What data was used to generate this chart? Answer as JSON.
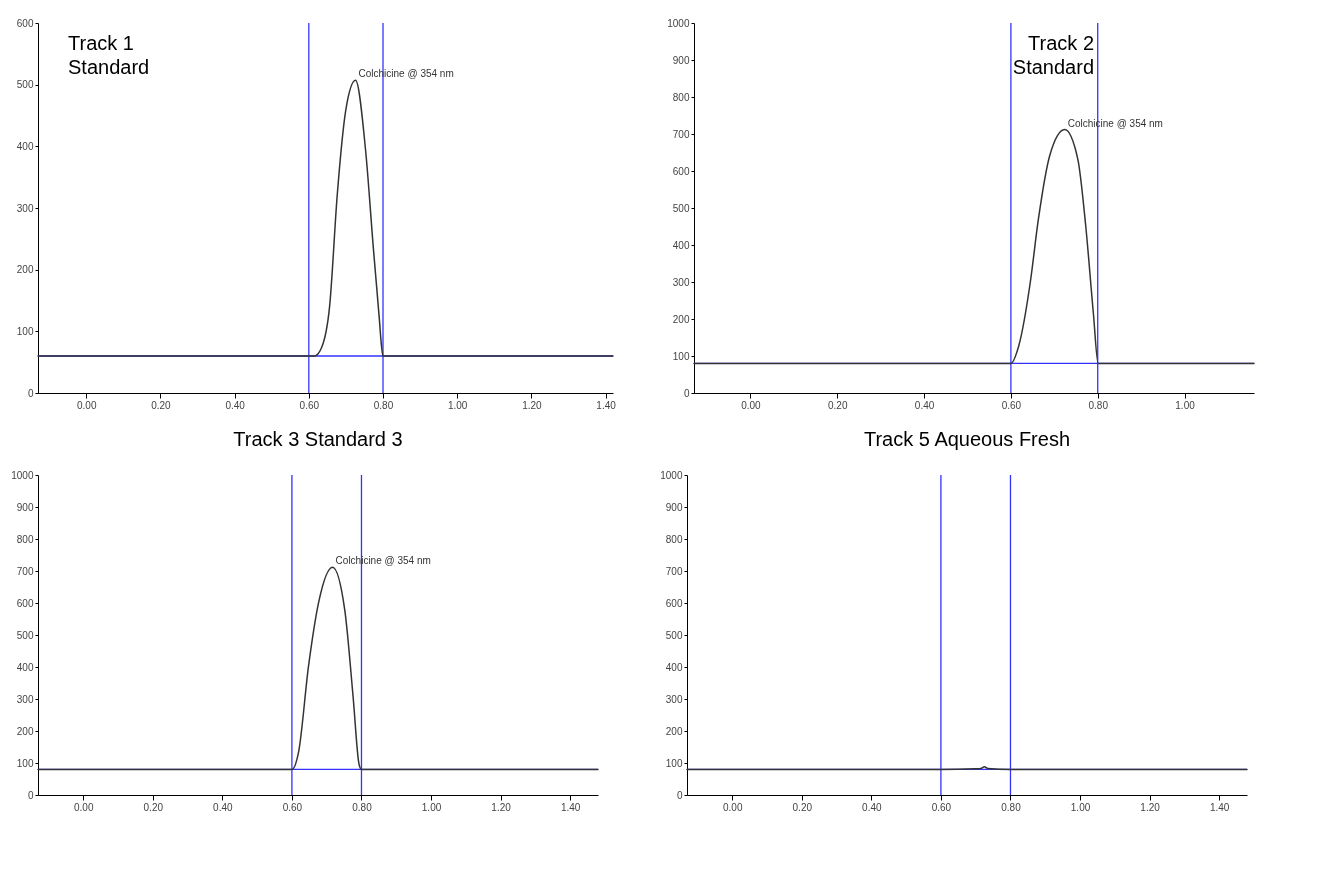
{
  "chart_data": [
    {
      "type": "line",
      "title": "Track 1\nStandard",
      "xlim": [
        -0.13,
        1.42
      ],
      "ylim": [
        0,
        600
      ],
      "yticks": [
        0,
        100,
        200,
        300,
        400,
        500,
        600
      ],
      "xticks": [
        {
          "value": 0,
          "label": "0.00"
        },
        {
          "value": 0.2,
          "label": "0.20"
        },
        {
          "value": 0.4,
          "label": "0.40"
        },
        {
          "value": 0.6,
          "label": "0.60"
        },
        {
          "value": 0.8,
          "label": "0.80"
        },
        {
          "value": 1,
          "label": "1.00"
        },
        {
          "value": 1.2,
          "label": "1.20"
        },
        {
          "value": 1.4,
          "label": "1.40"
        }
      ],
      "line_style": "solid",
      "grid": false,
      "legend": false,
      "marker": "none",
      "series": [
        {
          "color": "#333333",
          "x": [
            -0.13,
            0.6,
            0.615,
            0.634,
            0.656,
            0.677,
            0.7,
            0.726,
            0.753,
            0.774,
            0.79,
            0.796,
            0.8,
            1.42
          ],
          "values": [
            60,
            60,
            60,
            73,
            140,
            324,
            460,
            507,
            394,
            235,
            121,
            76,
            60,
            60
          ]
        }
      ],
      "ref_lines": [
        {
          "axis": "y",
          "value": 60,
          "color": "#3333ff"
        },
        {
          "axis": "x",
          "value": 0.6,
          "color": "#3333ff"
        },
        {
          "axis": "x",
          "value": 0.8,
          "color": "#3333ff"
        }
      ],
      "annotations": [
        {
          "text": "Colchicine @ 354 nm",
          "x": 0.726,
          "y": 507
        }
      ]
    },
    {
      "type": "line",
      "title": "Track 2\nStandard",
      "xlim": [
        -0.13,
        1.16
      ],
      "ylim": [
        0,
        1000
      ],
      "yticks": [
        0,
        100,
        200,
        300,
        400,
        500,
        600,
        700,
        800,
        900,
        1000
      ],
      "xticks": [
        {
          "value": 0,
          "label": "0.00"
        },
        {
          "value": 0.2,
          "label": "0.20"
        },
        {
          "value": 0.4,
          "label": "0.40"
        },
        {
          "value": 0.6,
          "label": "0.60"
        },
        {
          "value": 0.8,
          "label": "0.80"
        },
        {
          "value": 1,
          "label": "1.00"
        }
      ],
      "line_style": "solid",
      "grid": false,
      "legend": false,
      "marker": "none",
      "series": [
        {
          "color": "#333333",
          "x": [
            -0.13,
            0.6,
            0.618,
            0.645,
            0.663,
            0.69,
            0.724,
            0.754,
            0.772,
            0.79,
            0.801,
            1.16
          ],
          "values": [
            80,
            80,
            127,
            302,
            467,
            644,
            712,
            633,
            456,
            215,
            80,
            80
          ]
        }
      ],
      "ref_lines": [
        {
          "axis": "y",
          "value": 80,
          "color": "#3333ff"
        },
        {
          "axis": "x",
          "value": 0.6,
          "color": "#3333ff"
        },
        {
          "axis": "x",
          "value": 0.8,
          "color": "#3333ff"
        }
      ],
      "annotations": [
        {
          "text": "Colchicine @ 354 nm",
          "x": 0.724,
          "y": 712
        }
      ]
    },
    {
      "type": "line",
      "title": "Track 3 Standard 3",
      "xlim": [
        -0.13,
        1.48
      ],
      "ylim": [
        0,
        1000
      ],
      "yticks": [
        0,
        100,
        200,
        300,
        400,
        500,
        600,
        700,
        800,
        900,
        1000
      ],
      "xticks": [
        {
          "value": 0,
          "label": "0.00"
        },
        {
          "value": 0.2,
          "label": "0.20"
        },
        {
          "value": 0.4,
          "label": "0.40"
        },
        {
          "value": 0.6,
          "label": "0.60"
        },
        {
          "value": 0.8,
          "label": "0.80"
        },
        {
          "value": 1,
          "label": "1.00"
        },
        {
          "value": 1.2,
          "label": "1.20"
        },
        {
          "value": 1.4,
          "label": "1.40"
        }
      ],
      "line_style": "solid",
      "grid": false,
      "legend": false,
      "marker": "none",
      "series": [
        {
          "color": "#333333",
          "x": [
            -0.13,
            0.6,
            0.619,
            0.648,
            0.677,
            0.717,
            0.752,
            0.776,
            0.793,
            0.8,
            1.48
          ],
          "values": [
            80,
            80,
            133,
            405,
            603,
            712,
            578,
            306,
            96,
            80,
            80
          ]
        }
      ],
      "ref_lines": [
        {
          "axis": "y",
          "value": 80,
          "color": "#3333ff"
        },
        {
          "axis": "x",
          "value": 0.6,
          "color": "#3333ff"
        },
        {
          "axis": "x",
          "value": 0.8,
          "color": "#3333ff"
        }
      ],
      "annotations": [
        {
          "text": "Colchicine @ 354 nm",
          "x": 0.717,
          "y": 712
        }
      ]
    },
    {
      "type": "line",
      "title": "Track 5 Aqueous Fresh",
      "xlim": [
        -0.13,
        1.48
      ],
      "ylim": [
        0,
        1000
      ],
      "yticks": [
        0,
        100,
        200,
        300,
        400,
        500,
        600,
        700,
        800,
        900,
        1000
      ],
      "xticks": [
        {
          "value": 0,
          "label": "0.00"
        },
        {
          "value": 0.2,
          "label": "0.20"
        },
        {
          "value": 0.4,
          "label": "0.40"
        },
        {
          "value": 0.6,
          "label": "0.60"
        },
        {
          "value": 0.8,
          "label": "0.80"
        },
        {
          "value": 1,
          "label": "1.00"
        },
        {
          "value": 1.2,
          "label": "1.20"
        },
        {
          "value": 1.4,
          "label": "1.40"
        }
      ],
      "line_style": "solid",
      "grid": false,
      "legend": false,
      "marker": "none",
      "series": [
        {
          "color": "#333333",
          "x": [
            -0.13,
            0.6,
            0.7,
            0.715,
            0.725,
            0.735,
            0.8,
            1.48
          ],
          "values": [
            80,
            80,
            82,
            83,
            88,
            83,
            80,
            80
          ]
        }
      ],
      "ref_lines": [
        {
          "axis": "y",
          "value": 80,
          "color": "#3333ff"
        },
        {
          "axis": "x",
          "value": 0.6,
          "color": "#3333ff"
        },
        {
          "axis": "x",
          "value": 0.8,
          "color": "#3333ff"
        }
      ]
    }
  ]
}
